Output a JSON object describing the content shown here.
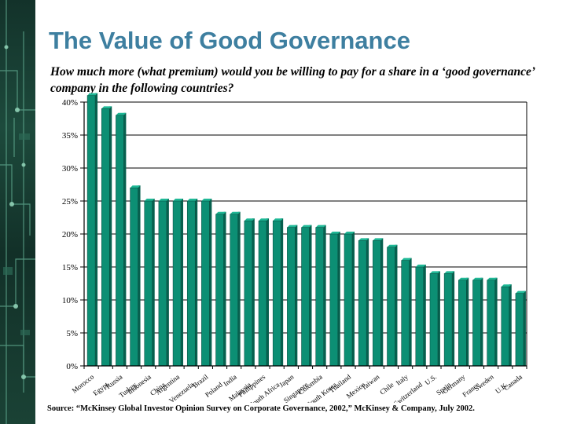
{
  "slide": {
    "title": "The Value of Good Governance",
    "subtitle": "How much more (what premium) would you be willing to pay for a share  in a ‘good governance’ company in the following countries?",
    "source": "Source: “McKinsey Global Investor Opinion Survey on Corporate Governance, 2002,” McKinsey & Company, July 2002."
  },
  "colors": {
    "title": "#3e7fa0",
    "bar": "#0c8f74",
    "bar_top": "#1fb896",
    "bar_dark": "#07604e",
    "axis": "#000000"
  },
  "chart_data": {
    "type": "bar",
    "categories": [
      "Morocco",
      "Egypt",
      "Russia",
      "Turkey",
      "Indonesia",
      "China",
      "Argentina",
      "Venezuela",
      "Brazil",
      "Poland",
      "India",
      "Malaysia",
      "Philippines",
      "South Africa",
      "Japan",
      "Singapore",
      "Colombia",
      "South Korea",
      "Thailand",
      "Mexico",
      "Taiwan",
      "Chile",
      "Italy",
      "Switzerland",
      "U.S.",
      "Spain",
      "Germany",
      "France",
      "Sweden",
      "U.K.",
      "Canada"
    ],
    "values": [
      41,
      39,
      38,
      27,
      25,
      25,
      25,
      25,
      25,
      23,
      23,
      22,
      22,
      22,
      21,
      21,
      21,
      20,
      20,
      19,
      19,
      18,
      16,
      15,
      14,
      14,
      13,
      13,
      13,
      12,
      11
    ],
    "yticks": [
      "0%",
      "5%",
      "10%",
      "15%",
      "20%",
      "25%",
      "30%",
      "35%",
      "40%"
    ],
    "ylim": [
      0,
      40
    ],
    "grid": true,
    "legend": false
  }
}
